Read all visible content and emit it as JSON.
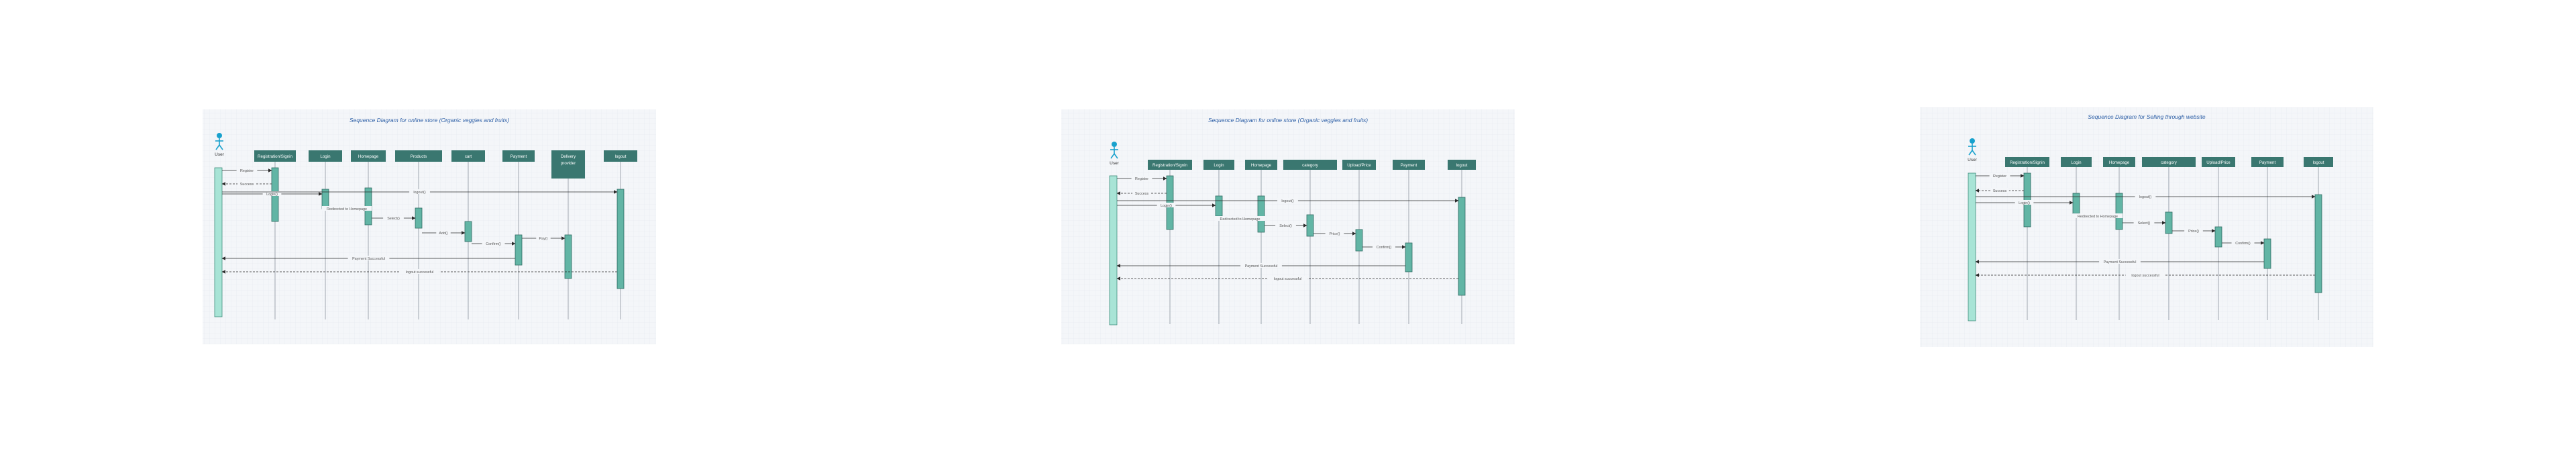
{
  "diagrams": [
    {
      "title": "Sequence Diagram for online store (Organic veggies and fruits)",
      "actor_label": "User",
      "participants": [
        "Registration/Signin",
        "Login",
        "Homepage",
        "Products",
        "cart",
        "Payment",
        "Delivery provider",
        "logout"
      ],
      "messages": [
        {
          "label": "Register",
          "from": "user",
          "to": 1,
          "dashed": false
        },
        {
          "label": "Success",
          "from": 1,
          "to": "user",
          "dashed": true
        },
        {
          "label": "Login()",
          "from": "user",
          "to": 2,
          "dashed": false
        },
        {
          "label": "Redirected to Homepage",
          "from": 2,
          "to": 3,
          "dashed": true
        },
        {
          "label": "Select()",
          "from": 3,
          "to": 4,
          "dashed": false
        },
        {
          "label": "Add()",
          "from": 4,
          "to": 5,
          "dashed": false
        },
        {
          "label": "Confirm()",
          "from": 5,
          "to": 6,
          "dashed": false
        },
        {
          "label": "Pay()",
          "from": 6,
          "to": 7,
          "dashed": false
        },
        {
          "label": "Payment Successful",
          "from": 6,
          "to": "user",
          "dashed": false
        },
        {
          "label": "logout successful",
          "from": 8,
          "to": "user",
          "dashed": true
        },
        {
          "label": "logout()",
          "from": "user",
          "to": 8,
          "dashed": false
        }
      ]
    },
    {
      "title": "Sequence Diagram for online store (Organic veggies and fruits)",
      "actor_label": "User",
      "participants": [
        "Registration/Signin",
        "Login",
        "Homepage",
        "category",
        "Upload/Price",
        "Payment",
        "logout"
      ],
      "messages": [
        {
          "label": "Register",
          "from": "user",
          "to": 1,
          "dashed": false
        },
        {
          "label": "Success",
          "from": 1,
          "to": "user",
          "dashed": true
        },
        {
          "label": "Login()",
          "from": "user",
          "to": 2,
          "dashed": false
        },
        {
          "label": "Redirected to Homepage",
          "from": 2,
          "to": 3,
          "dashed": true
        },
        {
          "label": "Select()",
          "from": 3,
          "to": 4,
          "dashed": false
        },
        {
          "label": "Price()",
          "from": 4,
          "to": 5,
          "dashed": false
        },
        {
          "label": "Confirm()",
          "from": 5,
          "to": 6,
          "dashed": false
        },
        {
          "label": "Payment Successful",
          "from": 6,
          "to": "user",
          "dashed": false
        },
        {
          "label": "logout successful",
          "from": 7,
          "to": "user",
          "dashed": true
        },
        {
          "label": "logout()",
          "from": "user",
          "to": 7,
          "dashed": false
        }
      ]
    },
    {
      "title": "Sequence Diagram for Selling through website",
      "actor_label": "User",
      "participants": [
        "Registration/Signin",
        "Login",
        "Homepage",
        "category",
        "Upload/Price",
        "Payment",
        "logout"
      ],
      "messages": [
        {
          "label": "Register",
          "from": "user",
          "to": 1,
          "dashed": false
        },
        {
          "label": "Success",
          "from": 1,
          "to": "user",
          "dashed": true
        },
        {
          "label": "Login()",
          "from": "user",
          "to": 2,
          "dashed": false
        },
        {
          "label": "Redirected to Homepage",
          "from": 2,
          "to": 3,
          "dashed": true
        },
        {
          "label": "Select()",
          "from": 3,
          "to": 4,
          "dashed": false
        },
        {
          "label": "Price()",
          "from": 4,
          "to": 5,
          "dashed": false
        },
        {
          "label": "Confirm()",
          "from": 5,
          "to": 6,
          "dashed": false
        },
        {
          "label": "Payment Successful",
          "from": 6,
          "to": "user",
          "dashed": false
        },
        {
          "label": "logout successful",
          "from": 7,
          "to": "user",
          "dashed": true
        },
        {
          "label": "logout()",
          "from": "user",
          "to": 7,
          "dashed": false
        }
      ]
    }
  ],
  "colors": {
    "background": "#ffffff",
    "panel": "#f4f6f9",
    "grid": "#e3e8ee",
    "header_box": "#3a7770",
    "header_text": "#ffffff",
    "activation": "#62b5a5",
    "activation_stroke": "#2f6a61",
    "user_bar": "#a8e4d6",
    "user_bar_stroke": "#3e8c7c",
    "actor": "#18a1cd",
    "title": "#2d5fa6",
    "lifeline": "#8a949e",
    "message": "#2a2a2a",
    "label": "#555555"
  }
}
